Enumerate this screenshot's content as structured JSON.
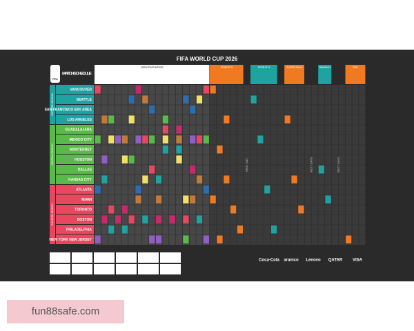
{
  "header": {
    "title": "FIFA WORLD CUP 2026",
    "logo": "MATCH SCHEDULE",
    "logo_sub": "FIFA"
  },
  "stages": [
    "GROUP STAGE MATCHES",
    "ROUND OF 32",
    "ROUND OF 16",
    "QUARTER-FINALS",
    "SEMI-FINALS",
    "FINAL"
  ],
  "regions": [
    "WESTERN REGION",
    "CENTRAL REGION",
    "EASTERN REGION"
  ],
  "cities": [
    "VANCOUVER",
    "SEATTLE",
    "SAN FRANCISCO BAY AREA",
    "LOS ANGELES",
    "GUADALAJARA",
    "MEXICO CITY",
    "MONTERREY",
    "HOUSTON",
    "DALLAS",
    "KANSAS CITY",
    "ATLANTA",
    "MIAMI",
    "TORONTO",
    "BOSTON",
    "PHILADELPHIA",
    "NEW YORK NEW JERSEY"
  ],
  "rest_days": [
    "REST DAY",
    "REST DAYS",
    "REST DAYS"
  ],
  "sponsors": [
    "Coca-Cola",
    "aramco",
    "Lenovo",
    "QATAR",
    "VISA"
  ],
  "watermark": "fun88safe.com"
}
